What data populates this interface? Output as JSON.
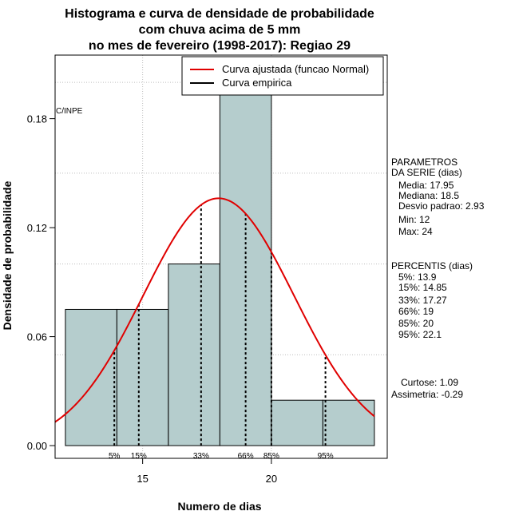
{
  "chart_data": {
    "type": "bar",
    "title_lines": [
      "Histograma e curva de densidade de probabilidade",
      "com chuva acima de 5 mm",
      "no mes de fevereiro (1998-2017): Regiao 29"
    ],
    "xlabel": "Numero de dias",
    "ylabel": "Densidade de probabilidade",
    "xlim": [
      11.6,
      24.5
    ],
    "ylim": [
      -0.007,
      0.215
    ],
    "x_ticks": [
      15,
      20
    ],
    "x_tick_labels": [
      "15",
      "20"
    ],
    "y_ticks": [
      0,
      0.06,
      0.12,
      0.18
    ],
    "y_tick_labels": [
      "0.00",
      "0.06",
      "0.12",
      "0.18"
    ],
    "grid": true,
    "bar_color": "#b5cdcd",
    "curve_color": "#e00000",
    "bins": [
      {
        "start": 12,
        "end": 14,
        "density": 0.075
      },
      {
        "start": 14,
        "end": 16,
        "density": 0.075
      },
      {
        "start": 16,
        "end": 18,
        "density": 0.1
      },
      {
        "start": 18,
        "end": 20,
        "density": 0.2
      },
      {
        "start": 20,
        "end": 22,
        "density": 0.025
      },
      {
        "start": 22,
        "end": 24,
        "density": 0.025
      }
    ],
    "normal_curve": {
      "mean": 17.95,
      "sd": 2.93
    },
    "percentile_markers": [
      {
        "label": "5%",
        "x": 13.9
      },
      {
        "label": "15%",
        "x": 14.85
      },
      {
        "label": "33%",
        "x": 17.27
      },
      {
        "label": "66%",
        "x": 19
      },
      {
        "label": "85%",
        "x": 20
      },
      {
        "label": "95%",
        "x": 22.1
      }
    ],
    "legend": {
      "position": "top-right",
      "entries": [
        {
          "label": "Curva ajustada (funcao Normal)",
          "color": "#e00000"
        },
        {
          "label": "Curva empirica",
          "color": "#000000"
        }
      ]
    },
    "source_label": "C/INPE"
  },
  "side_panel": {
    "param_header": [
      "PARAMETROS",
      "DA SERIE (dias)"
    ],
    "params": [
      "Media: 17.95",
      "Mediana: 18.5",
      "Desvio padrao: 2.93",
      "Min: 12",
      "Max: 24"
    ],
    "percentis_header": "PERCENTIS (dias)",
    "percentis": [
      "5%: 13.9",
      "15%: 14.85",
      "33%: 17.27",
      "66%: 19",
      "85%: 20",
      "95%: 22.1"
    ],
    "curtose": "Curtose: 1.09",
    "assimetria": "Assimetria: -0.29"
  }
}
